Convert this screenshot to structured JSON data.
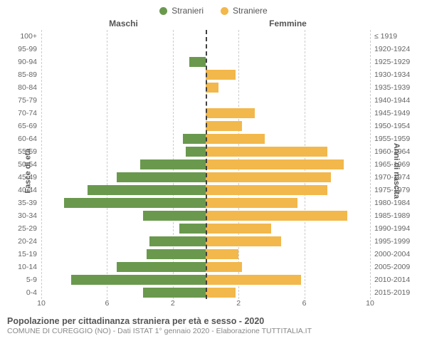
{
  "chart": {
    "type": "population-pyramid",
    "legend": [
      {
        "label": "Stranieri",
        "color": "#6a994e"
      },
      {
        "label": "Straniere",
        "color": "#f2b84b"
      }
    ],
    "panel_titles": {
      "male": "Maschi",
      "female": "Femmine"
    },
    "y_left_title": "Fasce di età",
    "y_right_title": "Anni di nascita",
    "x_max": 10,
    "x_ticks": [
      10,
      6,
      2,
      2,
      6,
      10
    ],
    "background_color": "#ffffff",
    "grid_color": "#cccccc",
    "center_line_color": "#404040",
    "bar_color_male": "#6a994e",
    "bar_color_female": "#f2b84b",
    "label_fontsize": 10.5,
    "title_fontsize": 12.5,
    "rows": [
      {
        "age": "100+",
        "m": 0,
        "f": 0,
        "year": "≤ 1919"
      },
      {
        "age": "95-99",
        "m": 0,
        "f": 0,
        "year": "1920-1924"
      },
      {
        "age": "90-94",
        "m": 1.0,
        "f": 0,
        "year": "1925-1929"
      },
      {
        "age": "85-89",
        "m": 0,
        "f": 1.8,
        "year": "1930-1934"
      },
      {
        "age": "80-84",
        "m": 0,
        "f": 0.8,
        "year": "1935-1939"
      },
      {
        "age": "75-79",
        "m": 0,
        "f": 0,
        "year": "1940-1944"
      },
      {
        "age": "70-74",
        "m": 0,
        "f": 3.0,
        "year": "1945-1949"
      },
      {
        "age": "65-69",
        "m": 0,
        "f": 2.2,
        "year": "1950-1954"
      },
      {
        "age": "60-64",
        "m": 1.4,
        "f": 3.6,
        "year": "1955-1959"
      },
      {
        "age": "55-59",
        "m": 1.2,
        "f": 7.4,
        "year": "1960-1964"
      },
      {
        "age": "50-54",
        "m": 4.0,
        "f": 8.4,
        "year": "1965-1969"
      },
      {
        "age": "45-49",
        "m": 5.4,
        "f": 7.6,
        "year": "1970-1974"
      },
      {
        "age": "40-44",
        "m": 7.2,
        "f": 7.4,
        "year": "1975-1979"
      },
      {
        "age": "35-39",
        "m": 8.6,
        "f": 5.6,
        "year": "1980-1984"
      },
      {
        "age": "30-34",
        "m": 3.8,
        "f": 8.6,
        "year": "1985-1989"
      },
      {
        "age": "25-29",
        "m": 1.6,
        "f": 4.0,
        "year": "1990-1994"
      },
      {
        "age": "20-24",
        "m": 3.4,
        "f": 4.6,
        "year": "1995-1999"
      },
      {
        "age": "15-19",
        "m": 3.6,
        "f": 2.0,
        "year": "2000-2004"
      },
      {
        "age": "10-14",
        "m": 5.4,
        "f": 2.2,
        "year": "2005-2009"
      },
      {
        "age": "5-9",
        "m": 8.2,
        "f": 5.8,
        "year": "2010-2014"
      },
      {
        "age": "0-4",
        "m": 3.8,
        "f": 1.8,
        "year": "2015-2019"
      }
    ],
    "footer": {
      "title": "Popolazione per cittadinanza straniera per età e sesso - 2020",
      "subtitle": "COMUNE DI CUREGGIO (NO) - Dati ISTAT 1° gennaio 2020 - Elaborazione TUTTITALIA.IT"
    }
  }
}
